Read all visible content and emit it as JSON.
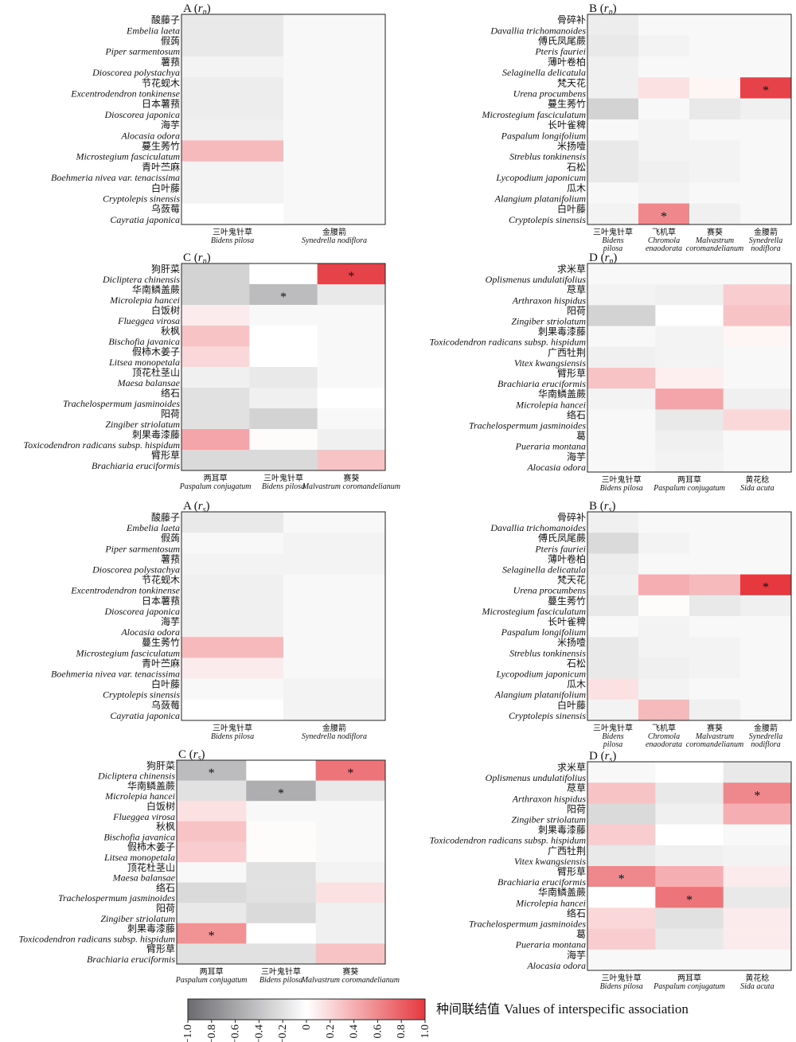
{
  "legend": {
    "title": "种间联结值 Values of interspecific association",
    "ticks": [
      "−1.0",
      "−0.8",
      "−0.6",
      "−0.4",
      "−0.2",
      "0",
      "0.2",
      "0.4",
      "0.6",
      "0.8",
      "1.0"
    ]
  },
  "chart_data": [
    {
      "type": "heatmap",
      "title": "A (",
      "subtitle": "rp",
      "rows": [
        [
          "酸藤子",
          "Embelia laeta"
        ],
        [
          "假蒟",
          "Piper sarmentosum"
        ],
        [
          "薯蓣",
          "Dioscorea polystachya"
        ],
        [
          "节花蚬木",
          "Excentrodendron tonkinense"
        ],
        [
          "日本薯蓣",
          "Dioscorea japonica"
        ],
        [
          "海芋",
          "Alocasia odora"
        ],
        [
          "蔓生莠竹",
          "Microstegium fasciculatum"
        ],
        [
          "青叶苎麻",
          "Boehmeria nivea var. tenacissima"
        ],
        [
          "白叶藤",
          "Cryptolepis sinensis"
        ],
        [
          "乌蔹莓",
          "Cayratia japonica"
        ]
      ],
      "cols": [
        [
          "三叶鬼针草",
          "Bidens pilosa"
        ],
        [
          "金腰箭",
          "Synedrella nodiflora"
        ]
      ],
      "values": [
        [
          -0.15,
          -0.05
        ],
        [
          -0.15,
          -0.05
        ],
        [
          -0.08,
          -0.05
        ],
        [
          -0.12,
          -0.05
        ],
        [
          -0.12,
          -0.05
        ],
        [
          -0.1,
          -0.05
        ],
        [
          0.35,
          -0.05
        ],
        [
          -0.08,
          -0.05
        ],
        [
          -0.08,
          -0.05
        ],
        [
          0.0,
          -0.05
        ]
      ],
      "stars": []
    },
    {
      "type": "heatmap",
      "title": "B (",
      "subtitle": "rp",
      "rows": [
        [
          "骨碎补",
          "Davallia trichomanoides"
        ],
        [
          "傅氏凤尾蕨",
          "Pteris fauriei"
        ],
        [
          "薄叶卷柏",
          "Selaginella delicatula"
        ],
        [
          "梵天花",
          "Urena procumbens"
        ],
        [
          "蔓生莠竹",
          "Microstegium fasciculatum"
        ],
        [
          "长叶雀稗",
          "Paspalum longifolium"
        ],
        [
          "米扬噎",
          "Streblus tonkinensis"
        ],
        [
          "石松",
          "Lycopodium japonicum"
        ],
        [
          "瓜木",
          "Alangium platanifolium"
        ],
        [
          "白叶藤",
          "Cryptolepis sinensis"
        ]
      ],
      "cols": [
        [
          "三叶鬼针草",
          "Bidens pilosa"
        ],
        [
          "飞机草",
          "Chromola enaodorata"
        ],
        [
          "赛葵",
          "Malvastrum coromandelianum"
        ],
        [
          "金腰箭",
          "Synedrella nodiflora"
        ]
      ],
      "values": [
        [
          -0.12,
          -0.05,
          -0.05,
          -0.05
        ],
        [
          -0.15,
          -0.08,
          -0.05,
          -0.05
        ],
        [
          -0.1,
          -0.05,
          -0.05,
          -0.05
        ],
        [
          -0.1,
          0.15,
          0.05,
          0.95
        ],
        [
          -0.3,
          -0.05,
          -0.15,
          -0.1
        ],
        [
          -0.05,
          -0.08,
          -0.05,
          -0.05
        ],
        [
          -0.15,
          -0.08,
          -0.08,
          -0.05
        ],
        [
          -0.15,
          -0.1,
          -0.08,
          -0.05
        ],
        [
          -0.05,
          -0.08,
          -0.05,
          -0.05
        ],
        [
          -0.08,
          0.6,
          -0.1,
          -0.05
        ]
      ],
      "stars": [
        [
          3,
          3
        ],
        [
          9,
          1
        ]
      ]
    },
    {
      "type": "heatmap",
      "title": "C (",
      "subtitle": "rp",
      "rows": [
        [
          "狗肝菜",
          "Dicliptera chinensis"
        ],
        [
          "华南鳞盖蕨",
          "Microlepia hancei"
        ],
        [
          "白饭树",
          "Flueggea virosa"
        ],
        [
          "秋枫",
          "Bischofia javanica"
        ],
        [
          "假柿木姜子",
          "Litsea monopetala"
        ],
        [
          "顶花杜茎山",
          "Maesa balansae"
        ],
        [
          "络石",
          "Trachelospermum jasminoides"
        ],
        [
          "阳荷",
          "Zingiber striolatum"
        ],
        [
          "刺果毒漆藤",
          "Toxicodendron radicans subsp. hispidum"
        ],
        [
          "臂形草",
          "Brachiaria eruciformis"
        ]
      ],
      "cols": [
        [
          "两耳草",
          "Paspalum conjugatum"
        ],
        [
          "三叶鬼针草",
          "Bidens pilosa"
        ],
        [
          "赛葵",
          "Malvastrum coromandelianum"
        ]
      ],
      "values": [
        [
          -0.3,
          0.0,
          0.95
        ],
        [
          -0.3,
          -0.45,
          -0.15
        ],
        [
          0.1,
          -0.05,
          -0.05
        ],
        [
          0.3,
          0.0,
          -0.05
        ],
        [
          0.2,
          0.0,
          -0.05
        ],
        [
          -0.1,
          -0.15,
          -0.05
        ],
        [
          -0.2,
          -0.1,
          0.0
        ],
        [
          -0.2,
          -0.3,
          -0.05
        ],
        [
          0.45,
          0.02,
          -0.1
        ],
        [
          -0.25,
          -0.25,
          0.3
        ]
      ],
      "stars": [
        [
          0,
          2
        ],
        [
          1,
          1
        ]
      ]
    },
    {
      "type": "heatmap",
      "title": "D (",
      "subtitle": "rp",
      "rows": [
        [
          "求米草",
          "Oplismenus undulatifolius"
        ],
        [
          "荩草",
          "Arthraxon hispidus"
        ],
        [
          "阳荷",
          "Zingiber striolatum"
        ],
        [
          "刺果毒漆藤",
          "Toxicodendron radicans subsp. hispidum"
        ],
        [
          "广西牡荆",
          "Vitex kwangsiensis"
        ],
        [
          "臂形草",
          "Brachiaria eruciformis"
        ],
        [
          "华南鳞盖蕨",
          "Microlepia hancei"
        ],
        [
          "络石",
          "Trachelospermum jasminoides"
        ],
        [
          "葛",
          "Pueraria montana"
        ],
        [
          "海芋",
          "Alocasia odora"
        ]
      ],
      "cols": [
        [
          "三叶鬼针草",
          "Bidens pilosa"
        ],
        [
          "两耳草",
          "Paspalum conjugatum"
        ],
        [
          "黄花稔",
          "Sida acuta"
        ]
      ],
      "values": [
        [
          -0.05,
          -0.05,
          -0.05
        ],
        [
          -0.08,
          -0.1,
          0.25
        ],
        [
          -0.3,
          0.0,
          0.3
        ],
        [
          -0.05,
          -0.08,
          0.05
        ],
        [
          -0.1,
          -0.08,
          -0.05
        ],
        [
          0.3,
          0.08,
          -0.05
        ],
        [
          -0.08,
          0.45,
          -0.1
        ],
        [
          -0.05,
          -0.15,
          0.2
        ],
        [
          -0.05,
          -0.1,
          -0.05
        ],
        [
          -0.05,
          -0.08,
          -0.05
        ]
      ],
      "stars": []
    },
    {
      "type": "heatmap",
      "title": "A (",
      "subtitle": "rs",
      "rows": [
        [
          "酸藤子",
          "Embelia laeta"
        ],
        [
          "假蒟",
          "Piper sarmentosum"
        ],
        [
          "薯蓣",
          "Dioscorea polystachya"
        ],
        [
          "节花蚬木",
          "Excentrodendron tonkinense"
        ],
        [
          "日本薯蓣",
          "Dioscorea japonica"
        ],
        [
          "海芋",
          "Alocasia odora"
        ],
        [
          "蔓生莠竹",
          "Microstegium fasciculatum"
        ],
        [
          "青叶苎麻",
          "Boehmeria nivea var. tenacissima"
        ],
        [
          "白叶藤",
          "Cryptolepis sinensis"
        ],
        [
          "乌蔹莓",
          "Cayratia japonica"
        ]
      ],
      "cols": [
        [
          "三叶鬼针草",
          "Bidens pilosa"
        ],
        [
          "金腰箭",
          "Synedrella nodiflora"
        ]
      ],
      "values": [
        [
          -0.15,
          -0.05
        ],
        [
          -0.05,
          -0.08
        ],
        [
          -0.08,
          -0.08
        ],
        [
          -0.1,
          -0.05
        ],
        [
          -0.1,
          -0.05
        ],
        [
          -0.1,
          -0.05
        ],
        [
          0.35,
          -0.05
        ],
        [
          0.1,
          -0.05
        ],
        [
          -0.05,
          -0.08
        ],
        [
          0.0,
          -0.08
        ]
      ],
      "stars": []
    },
    {
      "type": "heatmap",
      "title": "B (",
      "subtitle": "rs",
      "rows": [
        [
          "骨碎补",
          "Davallia trichomanoides"
        ],
        [
          "傅氏凤尾蕨",
          "Pteris fauriei"
        ],
        [
          "薄叶卷柏",
          "Selaginella delicatula"
        ],
        [
          "梵天花",
          "Urena procumbens"
        ],
        [
          "蔓生莠竹",
          "Microstegium fasciculatum"
        ],
        [
          "长叶雀稗",
          "Paspalum longifolium"
        ],
        [
          "米扬噎",
          "Streblus tonkinensis"
        ],
        [
          "石松",
          "Lycopodium japonicum"
        ],
        [
          "瓜木",
          "Alangium platanifolium"
        ],
        [
          "白叶藤",
          "Cryptolepis sinensis"
        ]
      ],
      "cols": [
        [
          "三叶鬼针草",
          "Bidens pilosa"
        ],
        [
          "飞机草",
          "Chromola enaodorata"
        ],
        [
          "赛葵",
          "Malvastrum coromandelianum"
        ],
        [
          "金腰箭",
          "Synedrella nodiflora"
        ]
      ],
      "values": [
        [
          -0.1,
          -0.05,
          -0.05,
          -0.05
        ],
        [
          -0.25,
          -0.08,
          -0.05,
          -0.05
        ],
        [
          -0.12,
          -0.05,
          -0.05,
          -0.05
        ],
        [
          -0.1,
          0.4,
          0.35,
          1.0
        ],
        [
          -0.15,
          0.02,
          -0.15,
          -0.1
        ],
        [
          -0.05,
          -0.08,
          -0.05,
          -0.05
        ],
        [
          -0.15,
          -0.08,
          -0.08,
          -0.05
        ],
        [
          -0.15,
          -0.1,
          -0.08,
          -0.05
        ],
        [
          0.15,
          -0.08,
          -0.05,
          -0.05
        ],
        [
          -0.08,
          0.35,
          -0.1,
          -0.05
        ]
      ],
      "stars": [
        [
          3,
          3
        ]
      ]
    },
    {
      "type": "heatmap",
      "title": "C (",
      "subtitle": "rs",
      "rows": [
        [
          "狗肝菜",
          "Dicliptera chinensis"
        ],
        [
          "华南鳞盖蕨",
          "Microlepia hancei"
        ],
        [
          "白饭树",
          "Flueggea virosa"
        ],
        [
          "秋枫",
          "Bischofia javanica"
        ],
        [
          "假柿木姜子",
          "Litsea monopetala"
        ],
        [
          "顶花杜茎山",
          "Maesa balansae"
        ],
        [
          "络石",
          "Trachelospermum jasminoides"
        ],
        [
          "阳荷",
          "Zingiber striolatum"
        ],
        [
          "刺果毒漆藤",
          "Toxicodendron radicans subsp. hispidum"
        ],
        [
          "臂形草",
          "Brachiaria eruciformis"
        ]
      ],
      "cols": [
        [
          "两耳草",
          "Paspalum conjugatum"
        ],
        [
          "三叶鬼针草",
          "Bidens pilosa"
        ],
        [
          "赛葵",
          "Malvastrum coromandelianum"
        ]
      ],
      "values": [
        [
          -0.45,
          0.0,
          0.7
        ],
        [
          -0.2,
          -0.55,
          -0.15
        ],
        [
          0.15,
          -0.05,
          -0.05
        ],
        [
          0.3,
          0.02,
          -0.05
        ],
        [
          0.25,
          0.02,
          -0.05
        ],
        [
          -0.05,
          -0.2,
          -0.08
        ],
        [
          -0.25,
          -0.2,
          0.15
        ],
        [
          -0.15,
          -0.25,
          -0.1
        ],
        [
          0.55,
          0.0,
          -0.1
        ],
        [
          -0.2,
          -0.2,
          0.3
        ]
      ],
      "stars": [
        [
          0,
          0
        ],
        [
          0,
          2
        ],
        [
          1,
          1
        ],
        [
          8,
          0
        ]
      ]
    },
    {
      "type": "heatmap",
      "title": "D (",
      "subtitle": "rs",
      "rows": [
        [
          "求米草",
          "Oplismenus undulatifolius"
        ],
        [
          "荩草",
          "Arthraxon hispidus"
        ],
        [
          "阳荷",
          "Zingiber striolatum"
        ],
        [
          "刺果毒漆藤",
          "Toxicodendron radicans subsp. hispidum"
        ],
        [
          "广西牡荆",
          "Vitex kwangsiensis"
        ],
        [
          "臂形草",
          "Brachiaria eruciformis"
        ],
        [
          "华南鳞盖蕨",
          "Microlepia hancei"
        ],
        [
          "络石",
          "Trachelospermum jasminoides"
        ],
        [
          "葛",
          "Pueraria montana"
        ],
        [
          "海芋",
          "Alocasia odora"
        ]
      ],
      "cols": [
        [
          "三叶鬼针草",
          "Bidens pilosa"
        ],
        [
          "两耳草",
          "Paspalum conjugatum"
        ],
        [
          "黄花稔",
          "Sida acuta"
        ]
      ],
      "values": [
        [
          -0.05,
          0.0,
          -0.15
        ],
        [
          0.3,
          -0.15,
          0.6
        ],
        [
          -0.25,
          -0.1,
          0.4
        ],
        [
          0.25,
          0.0,
          -0.05
        ],
        [
          -0.15,
          -0.1,
          -0.08
        ],
        [
          0.6,
          0.4,
          0.1
        ],
        [
          0.0,
          0.7,
          -0.15
        ],
        [
          0.2,
          -0.2,
          0.1
        ],
        [
          0.25,
          -0.15,
          0.1
        ],
        [
          -0.05,
          -0.05,
          -0.05
        ]
      ],
      "stars": [
        [
          1,
          2
        ],
        [
          5,
          0
        ],
        [
          6,
          1
        ]
      ]
    }
  ],
  "colors": {
    "neg": "#6b6b70",
    "zero": "#ffffff",
    "pos": "#e5383f",
    "border": "#222222"
  }
}
